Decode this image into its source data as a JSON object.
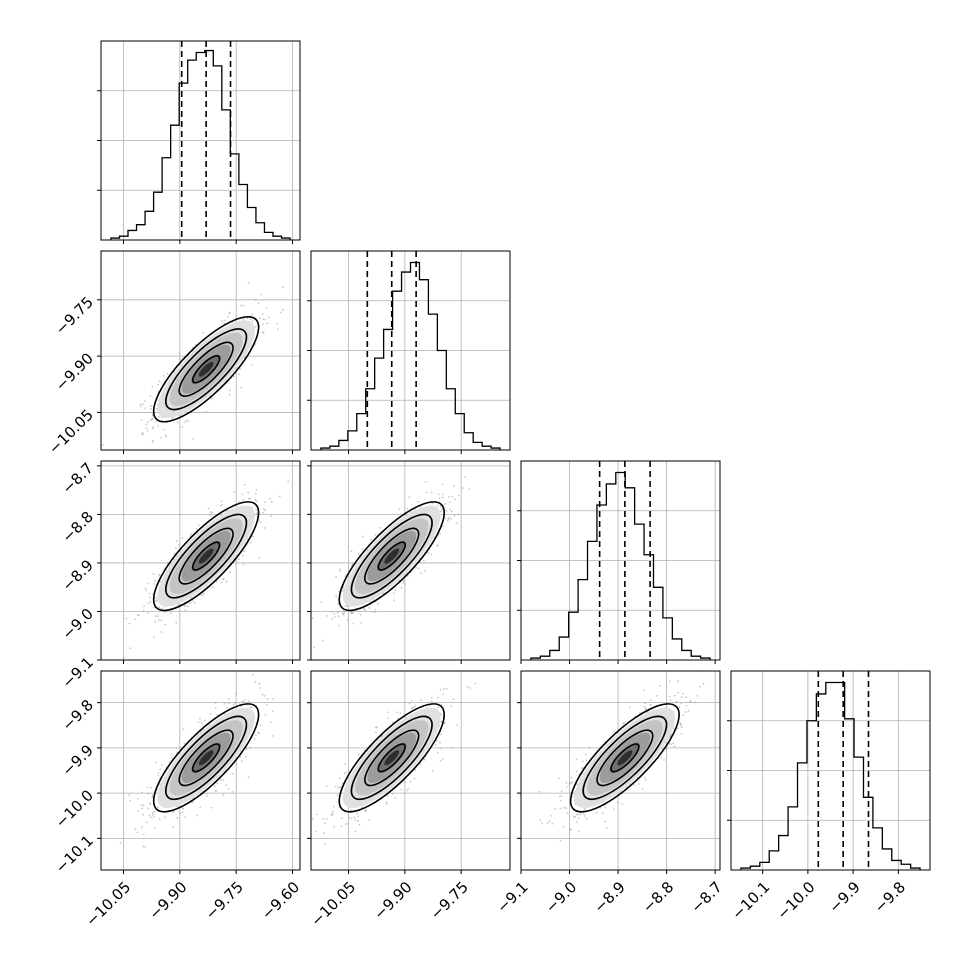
{
  "chart_data": {
    "type": "corner",
    "title": "",
    "parameters": [
      {
        "label": "",
        "ticks": [
          -10.05,
          -9.9,
          -9.75,
          -9.6
        ],
        "tick_labels": [
          "−10.05",
          "−9.90",
          "−9.75",
          "−9.60"
        ],
        "range": [
          -10.11,
          -9.58
        ]
      },
      {
        "label": "",
        "ticks": [
          -10.05,
          -9.9,
          -9.75
        ],
        "tick_labels": [
          "−10.05",
          "−9.90",
          "−9.75"
        ],
        "range": [
          -10.15,
          -9.62
        ]
      },
      {
        "label": "",
        "ticks": [
          -9.1,
          -9.0,
          -8.9,
          -8.8,
          -8.7
        ],
        "tick_labels": [
          "−9.1",
          "−9.0",
          "−8.9",
          "−8.8",
          "−8.7"
        ],
        "range": [
          -9.1,
          -8.69
        ]
      },
      {
        "label": "",
        "ticks": [
          -10.1,
          -10.0,
          -9.9,
          -9.8
        ],
        "tick_labels": [
          "−10.1",
          "−10.0",
          "−9.9",
          "−9.8"
        ],
        "range": [
          -10.17,
          -9.73
        ]
      }
    ],
    "quantiles": [
      [
        -9.895,
        -9.83,
        -9.765
      ],
      [
        -10.0,
        -9.935,
        -9.87
      ],
      [
        -8.938,
        -8.886,
        -8.834
      ],
      [
        -9.977,
        -9.922,
        -9.866
      ]
    ],
    "histograms": [
      [
        0.01,
        0.02,
        0.05,
        0.08,
        0.15,
        0.25,
        0.43,
        0.6,
        0.82,
        0.94,
        0.98,
        0.99,
        0.91,
        0.68,
        0.45,
        0.29,
        0.17,
        0.09,
        0.04,
        0.02,
        0.01
      ],
      [
        0.01,
        0.02,
        0.05,
        0.1,
        0.19,
        0.32,
        0.48,
        0.63,
        0.83,
        0.93,
        0.98,
        0.89,
        0.71,
        0.52,
        0.32,
        0.19,
        0.09,
        0.04,
        0.02,
        0.01
      ],
      [
        0.01,
        0.02,
        0.05,
        0.12,
        0.25,
        0.42,
        0.62,
        0.81,
        0.92,
        0.98,
        0.9,
        0.71,
        0.55,
        0.38,
        0.22,
        0.11,
        0.05,
        0.02,
        0.01
      ],
      [
        0.01,
        0.02,
        0.04,
        0.1,
        0.18,
        0.33,
        0.56,
        0.78,
        0.92,
        0.98,
        0.98,
        0.79,
        0.59,
        0.38,
        0.22,
        0.11,
        0.05,
        0.03,
        0.01
      ]
    ],
    "pair_correlation": 0.8,
    "grid": true,
    "legend": "none"
  }
}
